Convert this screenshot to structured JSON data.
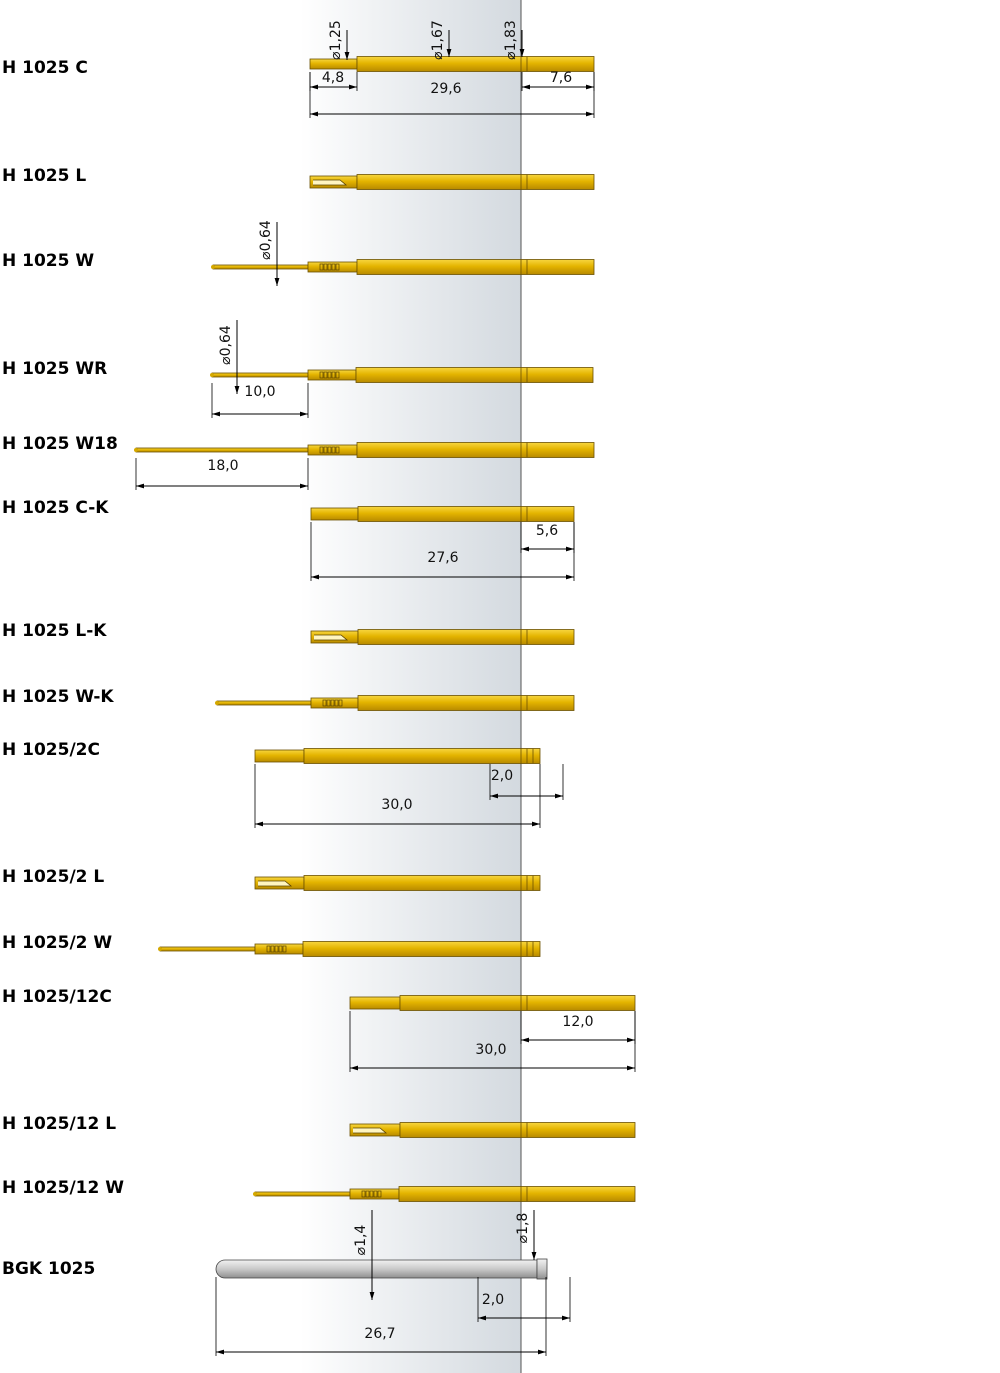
{
  "items": [
    {
      "label": "H 1025 C",
      "dimensions": [
        "⌀1,25",
        "⌀1,67",
        "⌀1,83",
        "4,8",
        "29,6",
        "7,6"
      ]
    },
    {
      "label": "H 1025 L",
      "dimensions": []
    },
    {
      "label": "H 1025 W",
      "dimensions": [
        "⌀0,64"
      ]
    },
    {
      "label": "H 1025 WR",
      "dimensions": [
        "⌀0,64",
        "10,0"
      ]
    },
    {
      "label": "H 1025 W18",
      "dimensions": [
        "18,0"
      ]
    },
    {
      "label": "H 1025 C-K",
      "dimensions": [
        "5,6",
        "27,6"
      ]
    },
    {
      "label": "H 1025 L-K",
      "dimensions": []
    },
    {
      "label": "H 1025 W-K",
      "dimensions": []
    },
    {
      "label": "H 1025/2C",
      "dimensions": [
        "2,0",
        "30,0"
      ]
    },
    {
      "label": "H 1025/2 L",
      "dimensions": []
    },
    {
      "label": "H 1025/2 W",
      "dimensions": []
    },
    {
      "label": "H 1025/12C",
      "dimensions": [
        "12,0",
        "30,0"
      ]
    },
    {
      "label": "H 1025/12 L",
      "dimensions": []
    },
    {
      "label": "H 1025/12 W",
      "dimensions": []
    },
    {
      "label": "BGK 1025",
      "dimensions": [
        "⌀1,4",
        "⌀1,8",
        "2,0",
        "26,7"
      ]
    }
  ]
}
